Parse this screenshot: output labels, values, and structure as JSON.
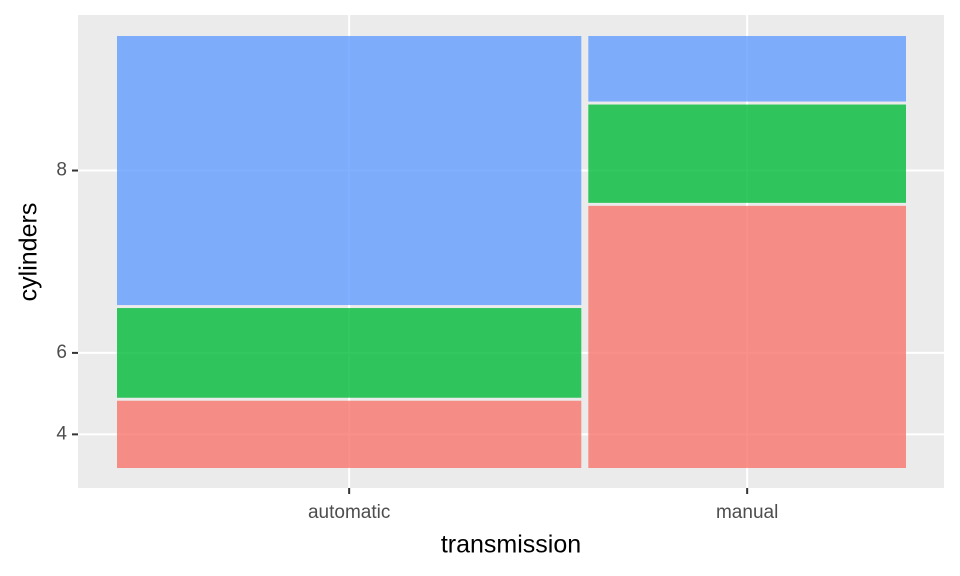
{
  "chart_data": {
    "type": "mosaic",
    "x_label": "transmission",
    "y_label": "cylinders",
    "categories": [
      "automatic",
      "manual"
    ],
    "series": [
      {
        "name": "4",
        "color": "#f8766d",
        "values": [
          3,
          8
        ]
      },
      {
        "name": "6",
        "color": "#00ba38",
        "values": [
          4,
          3
        ]
      },
      {
        "name": "8",
        "color": "#619cff",
        "values": [
          12,
          2
        ]
      }
    ],
    "grid": true
  }
}
